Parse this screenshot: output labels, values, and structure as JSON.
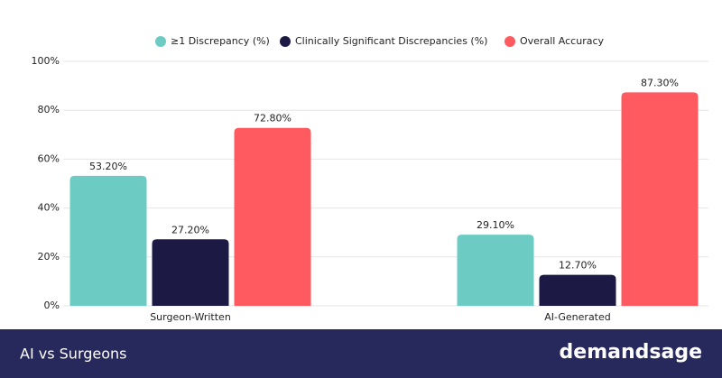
{
  "chart_data": {
    "type": "bar",
    "categories": [
      "Surgeon-Written",
      "AI-Generated"
    ],
    "series": [
      {
        "name": "≥1 Discrepancy (%)",
        "color": "#6ccbc3",
        "values": [
          53.2,
          29.1
        ],
        "value_labels": [
          "53.20%",
          "29.10%"
        ]
      },
      {
        "name": "Clinically Significant Discrepancies (%)",
        "color": "#1c1a44",
        "values": [
          27.2,
          12.7
        ],
        "value_labels": [
          "27.20%",
          "12.70%"
        ]
      },
      {
        "name": "Overall Accuracy",
        "color": "#ff5a5f",
        "values": [
          72.8,
          87.3
        ],
        "value_labels": [
          "72.80%",
          "87.30%"
        ]
      }
    ],
    "ylim": [
      0,
      100
    ],
    "yticks": [
      {
        "value": 0,
        "label": "0%"
      },
      {
        "value": 20,
        "label": "20%"
      },
      {
        "value": 40,
        "label": "40%"
      },
      {
        "value": 60,
        "label": "60%"
      },
      {
        "value": 80,
        "label": "80%"
      },
      {
        "value": 100,
        "label": "100%"
      }
    ],
    "grid": true,
    "legend": "top"
  },
  "footer": {
    "title": "AI vs Surgeons",
    "brand": "demandsage"
  }
}
